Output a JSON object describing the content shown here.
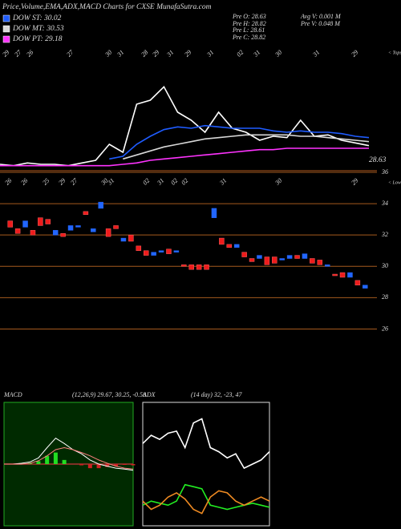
{
  "header": {
    "title": "Price,Volume,EMA,ADX,MACD Charts for CXSE MunafaSutra.com",
    "info": [
      "Pre  O: 28.63",
      "Pre  H: 28.82",
      "Pre  L: 28.61",
      "Pre  C: 28.82",
      "Avg V: 0.001 M",
      "Pre  V: 0.048 M"
    ]
  },
  "chart_data": [
    {
      "type": "line",
      "legend": "top-left",
      "corner_label": "< Tops",
      "last_label": "28.63",
      "top_labels": [
        "29",
        "27",
        "26",
        "27",
        "30",
        "31",
        "28",
        "29",
        "31",
        "29",
        "31",
        "02",
        "31",
        "30",
        "31",
        "29"
      ],
      "ylim": [
        27,
        36
      ],
      "series": [
        {
          "color": "#ffffff",
          "values": [
            27.6,
            27.5,
            27.7,
            27.6,
            27.6,
            27.5,
            27.7,
            27.9,
            29.1,
            28.5,
            32.1,
            32.4,
            33.4,
            31.5,
            30.9,
            30.0,
            31.5,
            30.3,
            30.0,
            29.4,
            29.7,
            29.6,
            30.9,
            29.7,
            29.8,
            29.4,
            29.2,
            29.0
          ]
        },
        {
          "name": "DOW ST: 30.02",
          "color": "#1f5cff",
          "values": [
            null,
            null,
            null,
            null,
            null,
            null,
            null,
            null,
            28.0,
            28.2,
            29.1,
            29.7,
            30.2,
            30.4,
            30.3,
            30.5,
            30.4,
            30.3,
            30.3,
            30.3,
            30.1,
            30.0,
            30.1,
            30.0,
            30.0,
            29.9,
            29.7,
            29.6
          ]
        },
        {
          "name": "DOW MT: 30.53",
          "color": "#d8d8d8",
          "values": [
            null,
            null,
            null,
            null,
            null,
            null,
            null,
            null,
            null,
            28.0,
            28.3,
            28.6,
            28.9,
            29.1,
            29.3,
            29.5,
            29.6,
            29.7,
            29.8,
            29.8,
            29.8,
            29.8,
            29.7,
            29.7,
            29.6,
            29.5,
            29.4,
            29.3
          ]
        },
        {
          "name": "DOW PT: 29.18",
          "color": "#ff33ff",
          "values": [
            27.5,
            27.5,
            27.5,
            27.5,
            27.5,
            27.5,
            27.5,
            27.5,
            27.5,
            27.6,
            27.7,
            27.9,
            28.0,
            28.1,
            28.2,
            28.3,
            28.4,
            28.5,
            28.6,
            28.7,
            28.7,
            28.8,
            28.8,
            28.8,
            28.8,
            28.8,
            28.8,
            28.8
          ]
        }
      ]
    },
    {
      "type": "candlestick",
      "corner_label": "< Lows",
      "top_labels": [
        "26",
        "26",
        "25",
        "29",
        "27",
        "30",
        "31",
        "02",
        "31",
        "02",
        "02",
        "31",
        "30",
        "29"
      ],
      "ylim": [
        25,
        36
      ],
      "yticks": [
        26,
        28,
        30,
        32,
        34,
        36
      ],
      "up_color": "#2266ff",
      "down_color": "#ee1c1c",
      "open": [
        32.9,
        32.4,
        32.5,
        32.3,
        33.1,
        33.0,
        32.0,
        32.1,
        32.3,
        32.5,
        33.5,
        32.2,
        33.7,
        32.4,
        32.6,
        31.6,
        32.0,
        31.3,
        31.0,
        30.7,
        30.9,
        31.1,
        30.9,
        30.1,
        30.1,
        30.1,
        30.1,
        33.1,
        31.8,
        31.4,
        31.2,
        30.9,
        30.5,
        30.5,
        30.6,
        30.6,
        30.4,
        30.5,
        30.7,
        30.5,
        30.5,
        30.4,
        30.0,
        29.5,
        29.6,
        29.3,
        29.1,
        28.6
      ],
      "close": [
        32.5,
        32.1,
        32.9,
        32.0,
        32.6,
        32.7,
        32.3,
        31.9,
        32.6,
        32.6,
        33.3,
        32.4,
        34.1,
        31.9,
        32.4,
        31.8,
        31.6,
        31.0,
        30.7,
        30.9,
        31.0,
        30.8,
        31.0,
        30.0,
        29.8,
        29.8,
        29.8,
        33.7,
        31.4,
        31.2,
        31.4,
        30.6,
        30.3,
        30.7,
        30.1,
        30.2,
        30.5,
        30.7,
        30.5,
        30.8,
        30.2,
        30.1,
        30.1,
        29.4,
        29.3,
        29.6,
        28.8,
        28.8
      ]
    },
    {
      "type": "macd",
      "title": "MACD",
      "subtitle": "(12,26,9) 29.67, 30.25, -0.58",
      "ylim": [
        -1.5,
        1.5
      ],
      "background": "#002a00",
      "border": "#22aa22",
      "hist_up_color": "#22dd22",
      "hist_down_color": "#cc2222",
      "histogram": [
        0,
        0,
        0.02,
        0.03,
        0.07,
        0.2,
        0.28,
        0.1,
        0,
        -0.03,
        -0.1,
        -0.1,
        -0.07,
        -0.05,
        -0.02,
        -0.03
      ],
      "series": [
        {
          "color": "#ffffff",
          "values": [
            0,
            0,
            0.02,
            0.05,
            0.15,
            0.4,
            0.63,
            0.5,
            0.35,
            0.25,
            0.1,
            0.0,
            -0.05,
            -0.1,
            -0.12,
            -0.15
          ]
        },
        {
          "color": "#ff8080",
          "values": [
            0,
            0,
            0,
            0.02,
            0.08,
            0.2,
            0.35,
            0.4,
            0.35,
            0.28,
            0.2,
            0.1,
            0.02,
            -0.05,
            -0.1,
            -0.12
          ]
        }
      ]
    },
    {
      "type": "adx",
      "title": "ADX",
      "subtitle": "(14 day) 32, -23, 47",
      "ylim": [
        0,
        60
      ],
      "background": "#000000",
      "border": "#dddddd",
      "series": [
        {
          "color": "#ffffff",
          "values": [
            40,
            44,
            42,
            45,
            46,
            38,
            50,
            52,
            38,
            36,
            33,
            35,
            28,
            30,
            32,
            36
          ]
        },
        {
          "color": "#22ee22",
          "values": [
            10,
            12,
            11,
            10,
            12,
            20,
            19,
            18,
            10,
            9,
            8,
            9,
            10,
            11,
            10,
            9
          ]
        },
        {
          "color": "#ee8a22",
          "values": [
            12,
            8,
            10,
            14,
            16,
            13,
            8,
            6,
            14,
            17,
            16,
            12,
            10,
            12,
            14,
            12
          ]
        }
      ]
    }
  ]
}
